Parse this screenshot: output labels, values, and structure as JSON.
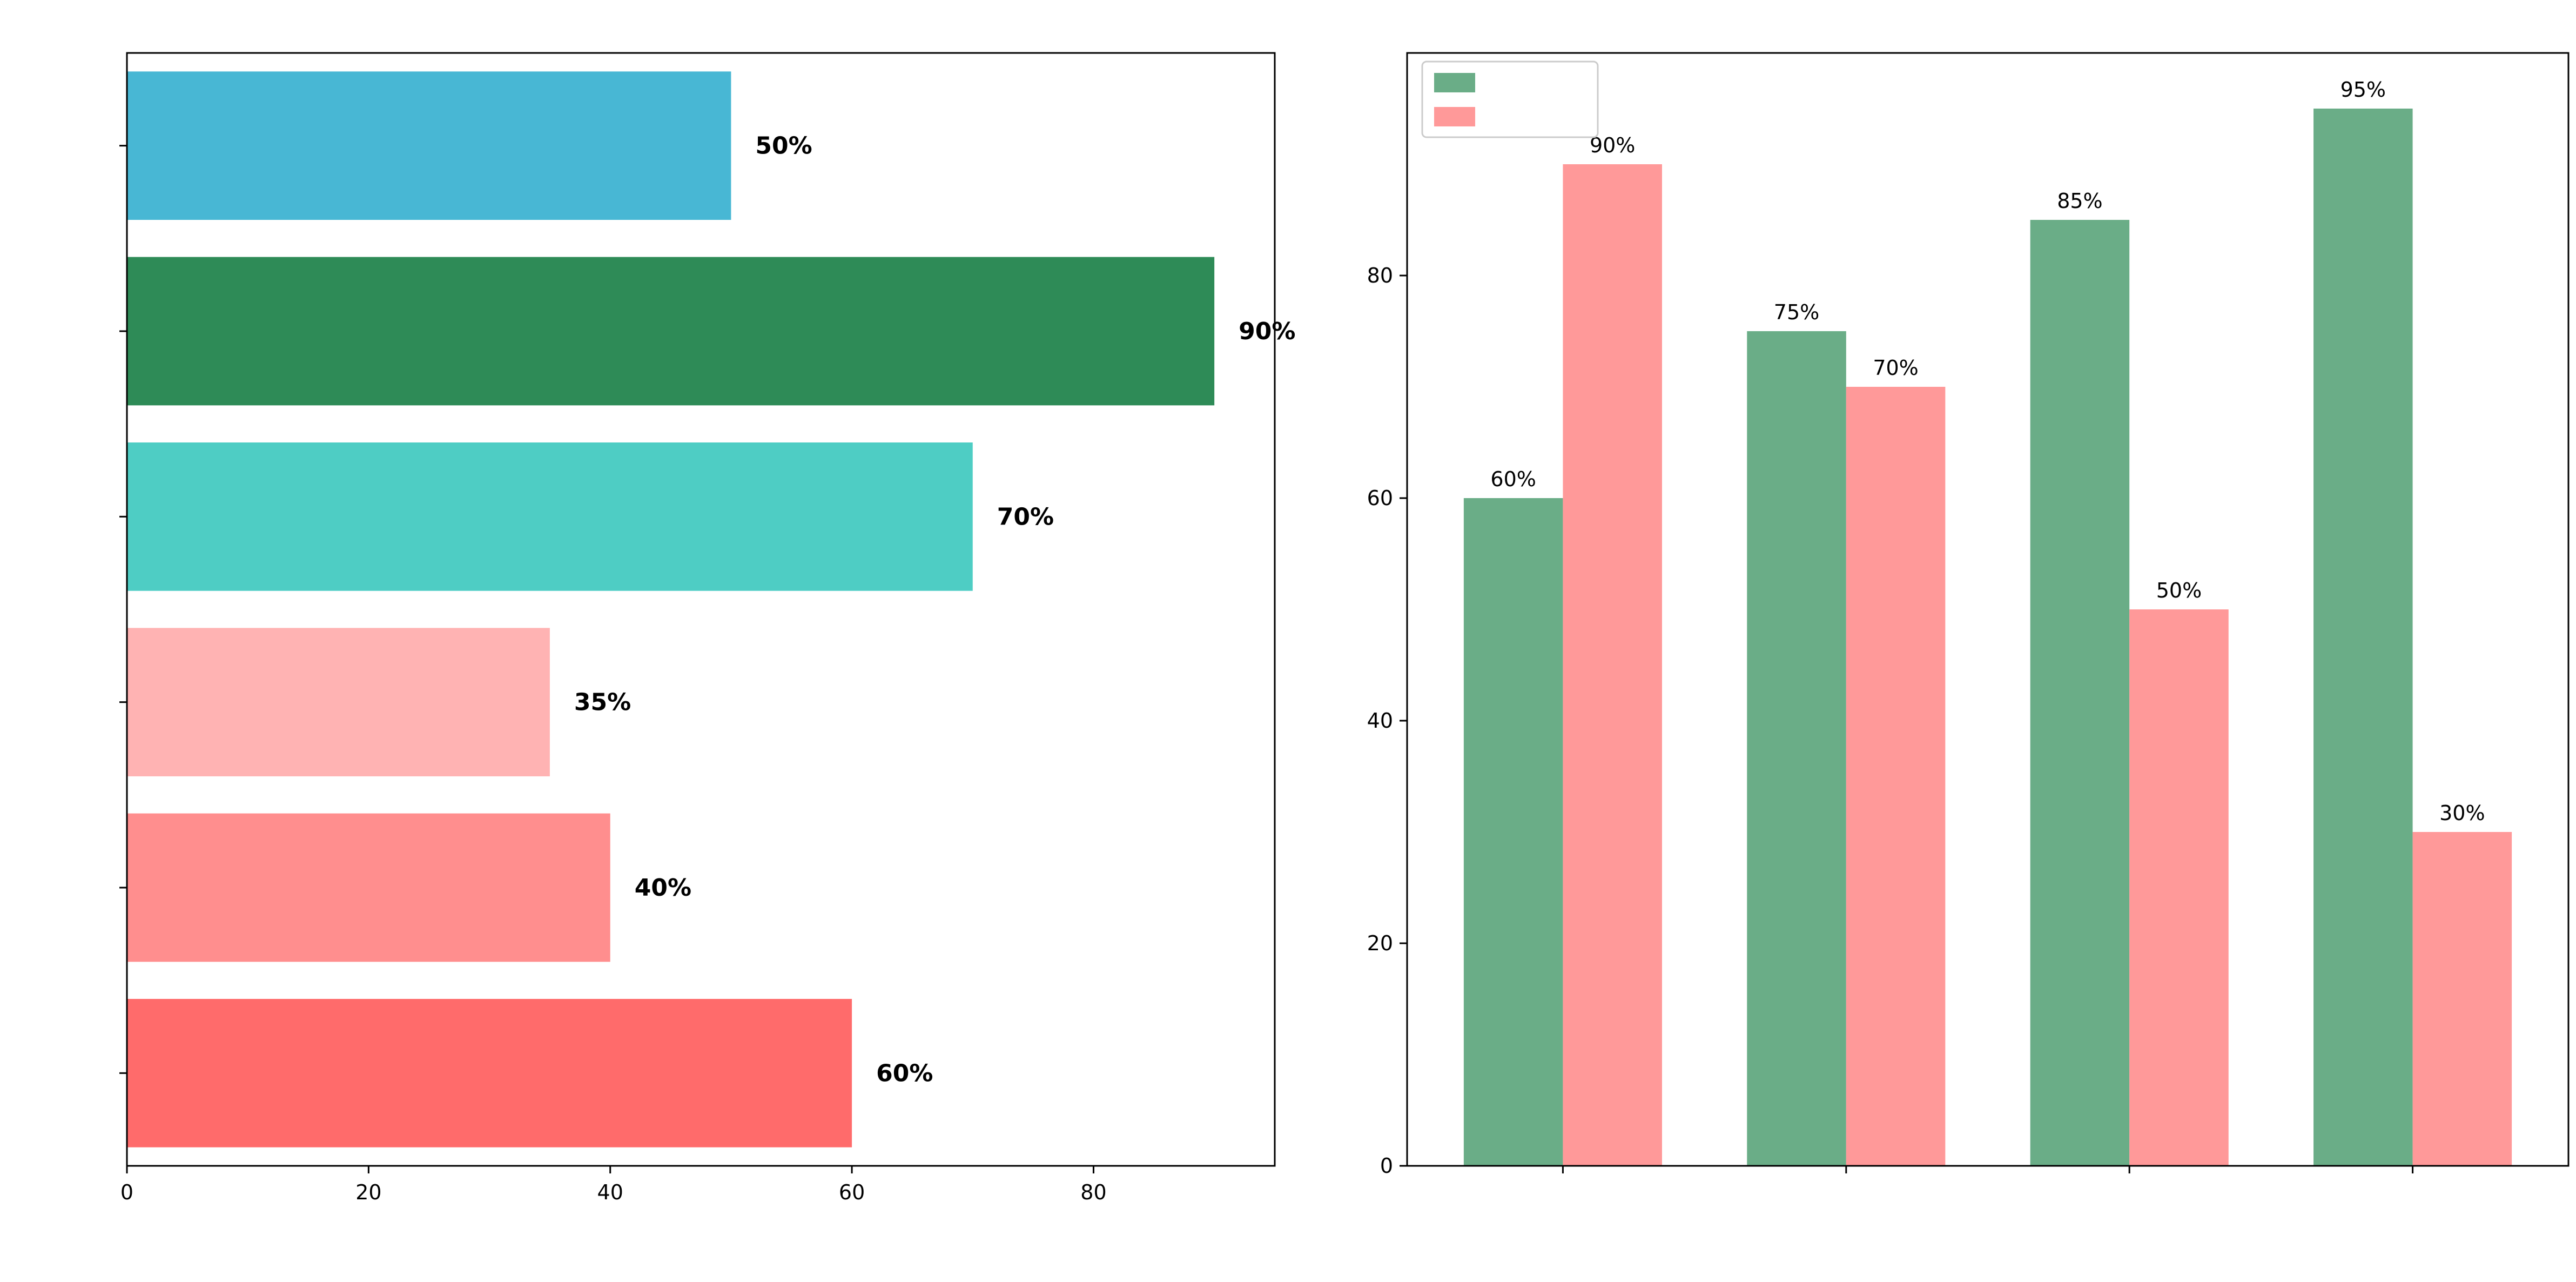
{
  "chart_data": [
    {
      "type": "bar",
      "orientation": "horizontal",
      "title": "",
      "xlabel": "",
      "ylabel": "",
      "categories": [
        "",
        "",
        "",
        "",
        "",
        ""
      ],
      "values": [
        50,
        90,
        70,
        35,
        40,
        60
      ],
      "value_labels": [
        "50%",
        "90%",
        "70%",
        "35%",
        "40%",
        "60%"
      ],
      "colors": [
        "#48b7d4",
        "#2e8b57",
        "#4ecdc4",
        "#ffb3b3",
        "#ff8e8e",
        "#ff6b6b"
      ],
      "xlim": [
        0,
        95
      ],
      "xticks": [
        "0",
        "20",
        "40",
        "60",
        "80"
      ],
      "grid": false
    },
    {
      "type": "bar",
      "orientation": "vertical",
      "title": "",
      "xlabel": "",
      "ylabel": "",
      "categories": [
        [
          "",
          ""
        ],
        [
          "",
          ""
        ],
        [
          "",
          ""
        ],
        [
          "",
          ""
        ]
      ],
      "series": [
        {
          "name": "",
          "color": "#6aad87",
          "values": [
            60,
            75,
            85,
            95
          ],
          "labels": [
            "60%",
            "75%",
            "85%",
            "95%"
          ]
        },
        {
          "name": "",
          "color": "#ff9999",
          "values": [
            90,
            70,
            50,
            30
          ],
          "labels": [
            "90%",
            "70%",
            "50%",
            "30%"
          ]
        }
      ],
      "ylim": [
        0,
        100
      ],
      "yticks": [
        "0",
        "20",
        "40",
        "60",
        "80"
      ],
      "legend": "top-left",
      "grid": false
    }
  ]
}
